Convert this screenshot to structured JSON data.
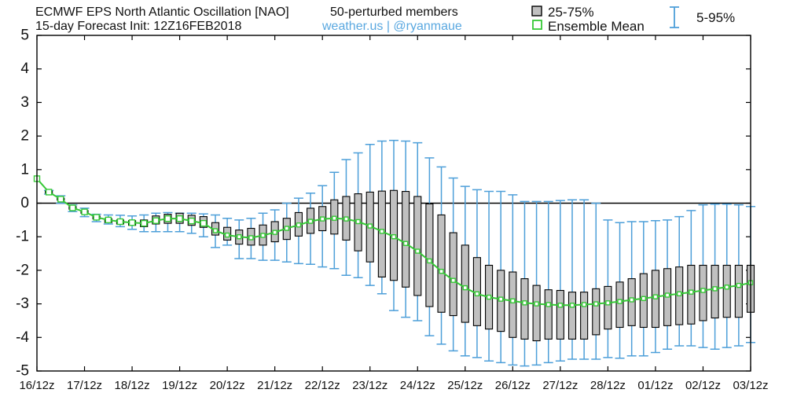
{
  "colors": {
    "box_fill": "#c0c0c0",
    "box_stroke": "#000000",
    "whisker": "#4d9fd9",
    "mean": "#36c836",
    "credit": "#5aa8e0",
    "zero_line": "#000000"
  },
  "chart_data": {
    "type": "box",
    "title": "ECMWF EPS North Atlantic Oscillation [NAO]",
    "subtitle": "50-perturbed members",
    "forecast_info": "15-day Forecast Init: 12Z16FEB2018",
    "credit": "weather.us | @ryanmaue",
    "xlabel": "",
    "ylabel": "",
    "ylim": [
      -5,
      5
    ],
    "y_ticks": [
      5,
      4,
      3,
      2,
      1,
      0,
      -1,
      -2,
      -3,
      -4,
      -5
    ],
    "x_tick_labels": [
      "16/12z",
      "17/12z",
      "18/12z",
      "19/12z",
      "20/12z",
      "21/12z",
      "22/12z",
      "23/12z",
      "24/12z",
      "25/12z",
      "26/12z",
      "27/12z",
      "28/12z",
      "01/12z",
      "02/12z",
      "03/12z"
    ],
    "reference_line": 0,
    "grid": false,
    "legend_position": "top-right",
    "x": [
      "16/12z",
      "16/18z",
      "17/00z",
      "17/06z",
      "17/12z",
      "17/18z",
      "18/00z",
      "18/06z",
      "18/12z",
      "18/18z",
      "19/00z",
      "19/06z",
      "19/12z",
      "19/18z",
      "20/00z",
      "20/06z",
      "20/12z",
      "20/18z",
      "21/00z",
      "21/06z",
      "21/12z",
      "21/18z",
      "22/00z",
      "22/06z",
      "22/12z",
      "22/18z",
      "23/00z",
      "23/06z",
      "23/12z",
      "23/18z",
      "24/00z",
      "24/06z",
      "24/12z",
      "24/18z",
      "25/00z",
      "25/06z",
      "25/12z",
      "25/18z",
      "26/00z",
      "26/06z",
      "26/12z",
      "26/18z",
      "27/00z",
      "27/06z",
      "27/12z",
      "27/18z",
      "28/00z",
      "28/06z",
      "28/12z",
      "28/18z",
      "01/00z",
      "01/06z",
      "01/12z",
      "01/18z",
      "02/00z",
      "02/06z",
      "02/12z",
      "02/18z",
      "03/00z",
      "03/06z",
      "03/12z"
    ],
    "series": [
      {
        "name": "Ensemble Mean",
        "values": [
          0.73,
          0.33,
          0.12,
          -0.14,
          -0.26,
          -0.42,
          -0.5,
          -0.55,
          -0.58,
          -0.6,
          -0.52,
          -0.46,
          -0.46,
          -0.53,
          -0.6,
          -0.82,
          -0.95,
          -1.0,
          -1.03,
          -0.96,
          -0.87,
          -0.75,
          -0.65,
          -0.54,
          -0.47,
          -0.45,
          -0.47,
          -0.55,
          -0.68,
          -0.84,
          -1.0,
          -1.2,
          -1.43,
          -1.72,
          -2.03,
          -2.3,
          -2.52,
          -2.7,
          -2.8,
          -2.86,
          -2.91,
          -2.97,
          -3.0,
          -3.02,
          -3.04,
          -3.04,
          -3.02,
          -3.0,
          -2.97,
          -2.93,
          -2.88,
          -2.84,
          -2.79,
          -2.74,
          -2.7,
          -2.65,
          -2.6,
          -2.55,
          -2.5,
          -2.45,
          -2.37
        ]
      },
      {
        "name": "25-75%",
        "low": [
          null,
          0.3,
          0.09,
          -0.18,
          -0.3,
          -0.47,
          -0.58,
          -0.62,
          -0.66,
          -0.7,
          -0.62,
          -0.6,
          -0.6,
          -0.66,
          -0.72,
          -0.95,
          -1.1,
          -1.22,
          -1.25,
          -1.25,
          -1.15,
          -1.08,
          -0.98,
          -0.9,
          -0.82,
          -0.92,
          -1.1,
          -1.42,
          -1.75,
          -2.2,
          -2.3,
          -2.5,
          -2.75,
          -3.08,
          -3.25,
          -3.35,
          -3.55,
          -3.65,
          -3.75,
          -3.82,
          -4.0,
          -4.05,
          -4.1,
          -4.05,
          -4.05,
          -4.05,
          -4.05,
          -3.92,
          -3.75,
          -3.7,
          -3.65,
          -3.7,
          -3.7,
          -3.65,
          -3.62,
          -3.6,
          -3.5,
          -3.42,
          -3.4,
          -3.4,
          -3.25
        ],
        "high": [
          null,
          0.36,
          0.15,
          -0.1,
          -0.22,
          -0.38,
          -0.46,
          -0.5,
          -0.52,
          -0.5,
          -0.38,
          -0.33,
          -0.3,
          -0.36,
          -0.4,
          -0.58,
          -0.72,
          -0.8,
          -0.75,
          -0.65,
          -0.55,
          -0.45,
          -0.28,
          -0.15,
          -0.1,
          0.1,
          0.2,
          0.28,
          0.33,
          0.36,
          0.38,
          0.35,
          0.2,
          -0.02,
          -0.35,
          -0.88,
          -1.25,
          -1.62,
          -1.85,
          -2.0,
          -2.05,
          -2.25,
          -2.45,
          -2.58,
          -2.6,
          -2.65,
          -2.65,
          -2.55,
          -2.48,
          -2.35,
          -2.25,
          -2.1,
          -2.0,
          -1.95,
          -1.9,
          -1.85,
          -1.85,
          -1.85,
          -1.85,
          -1.85,
          -1.85
        ]
      },
      {
        "name": "5-95%",
        "low": [
          null,
          0.27,
          0.0,
          -0.25,
          -0.4,
          -0.55,
          -0.62,
          -0.7,
          -0.78,
          -0.85,
          -0.85,
          -0.85,
          -0.85,
          -0.9,
          -1.0,
          -1.32,
          -1.25,
          -1.65,
          -1.65,
          -1.7,
          -1.7,
          -1.75,
          -1.8,
          -1.82,
          -1.9,
          -1.95,
          -2.15,
          -2.22,
          -2.45,
          -2.7,
          -3.2,
          -3.4,
          -3.5,
          -3.95,
          -4.2,
          -4.4,
          -4.55,
          -4.6,
          -4.7,
          -4.75,
          -4.82,
          -4.85,
          -4.82,
          -4.75,
          -4.7,
          -4.65,
          -4.65,
          -4.65,
          -4.6,
          -4.62,
          -4.55,
          -4.55,
          -4.45,
          -4.35,
          -4.25,
          -4.25,
          -4.3,
          -4.35,
          -4.3,
          -4.25,
          -4.15
        ],
        "high": [
          null,
          0.38,
          0.22,
          -0.05,
          -0.15,
          -0.33,
          -0.35,
          -0.36,
          -0.38,
          -0.35,
          -0.3,
          -0.28,
          -0.3,
          -0.3,
          -0.32,
          -0.35,
          -0.45,
          -0.5,
          -0.45,
          -0.3,
          -0.2,
          0.0,
          0.15,
          0.3,
          0.52,
          0.92,
          1.3,
          1.5,
          1.75,
          1.85,
          1.87,
          1.85,
          1.8,
          1.35,
          1.08,
          0.75,
          0.5,
          0.4,
          0.35,
          0.35,
          0.25,
          0.05,
          0.05,
          0.05,
          0.08,
          0.1,
          0.1,
          0.0,
          -0.5,
          -0.58,
          -0.55,
          -0.55,
          -0.52,
          -0.5,
          -0.4,
          -0.22,
          -0.05,
          -0.03,
          -0.03,
          -0.05,
          -0.1
        ]
      }
    ]
  }
}
